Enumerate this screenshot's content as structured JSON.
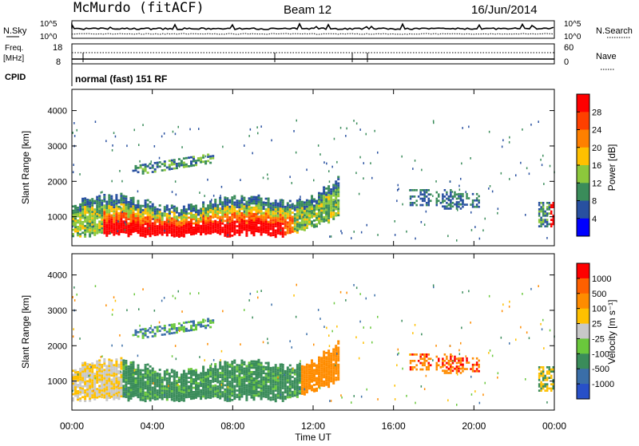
{
  "header": {
    "station": "McMurdo (fitACF)",
    "beam": "Beam 12",
    "date": "16/Jun/2014"
  },
  "top_panels": {
    "nsky_label": "N.Sky",
    "nsearch_label": "N.Search",
    "noise_ticks_left": [
      "10^5",
      "10^0"
    ],
    "noise_ticks_right": [
      "10^5",
      "10^0"
    ],
    "freq_label_1": "Freq.",
    "freq_label_2": "[MHz]",
    "freq_ticks": [
      "18",
      "8"
    ],
    "nave_label": "Nave",
    "nave_ticks": [
      "60",
      "0"
    ],
    "cpid_label": "CPID",
    "cpid_text": "normal (fast) 151 RF"
  },
  "colors": {
    "power_scale": [
      "#0000ff",
      "#2850a0",
      "#3a8c5a",
      "#8cc83c",
      "#ffc000",
      "#ff8000",
      "#ff4000",
      "#ff0000"
    ],
    "velocity_scale": [
      "#2850c8",
      "#3a6ea8",
      "#3a8c5a",
      "#6ac83c",
      "#c8c8c8",
      "#ffc000",
      "#ff8c00",
      "#ff6000",
      "#ff0000"
    ]
  },
  "chart_data": [
    {
      "type": "heatmap",
      "ylabel": "Slant Range [km]",
      "yticks": [
        "4000",
        "3000",
        "2000",
        "1000"
      ],
      "colorbar_label": "Power [dB]",
      "colorbar_ticks": [
        "28",
        "24",
        "20",
        "16",
        "12",
        "8",
        "4"
      ],
      "ylim": [
        180,
        4600
      ],
      "range_km": [
        0,
        4600
      ]
    },
    {
      "type": "heatmap",
      "ylabel": "Slant Range [km]",
      "yticks": [
        "4000",
        "3000",
        "2000",
        "1000"
      ],
      "colorbar_label": "Velocity [m s⁻¹]",
      "colorbar_ticks": [
        "1000",
        "500",
        "100",
        "25",
        "-25",
        "-100",
        "-500",
        "-1000"
      ],
      "xlabel": "Time UT",
      "xticks": [
        "00:00",
        "04:00",
        "08:00",
        "12:00",
        "16:00",
        "20:00",
        "00:00"
      ],
      "ylim": [
        180,
        4600
      ]
    }
  ]
}
